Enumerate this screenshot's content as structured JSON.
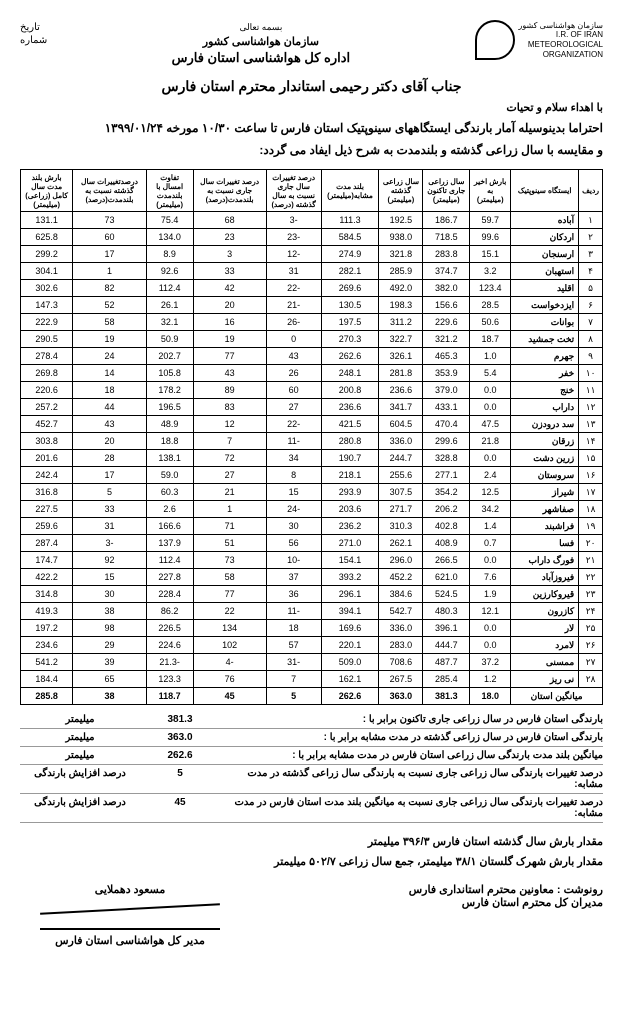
{
  "header": {
    "basmeh": "بسمه تعالی",
    "ministry": "سازمان هواشناسی کشور",
    "department": "اداره کل هواشناسی استان فارس",
    "logo_fa": "سازمان هواشناسی کشور",
    "logo_en1": "I.R. OF IRAN",
    "logo_en2": "METEOROLOGICAL",
    "logo_en3": "ORGANIZATION",
    "date_label": "تاریخ",
    "number_label": "شماره"
  },
  "letter": {
    "addressee": "جناب آقای دکتر رحیمی استاندار محترم استان فارس",
    "greeting": "با اهداء سلام و تحیات",
    "body1": "احتراما بدینوسیله آمار بارندگی ایستگاههای سینوپتیک استان فارس تا ساعت ۱۰/۳۰ مورخه ۱۳۹۹/۰۱/۲۴",
    "body2": "و مقایسه با سال زراعی گذشته و بلندمدت به شرح ذیل ایفاد می گردد:"
  },
  "table": {
    "headers": [
      "ردیف",
      "ایستگاه سینوپتیک",
      "بارش اخیر به (میلیمتر)",
      "سال زراعی جاری تاکنون (میلیمتر)",
      "سال زراعی گذشته (میلیمتر)",
      "بلند مدت مشابه(میلیمتر)",
      "درصد تغییرات سال جاری نسبت به سال گذشته (درصد)",
      "درصد تغییرات سال جاری نسبت به بلندمدت(درصد)",
      "تفاوت امسال با بلندمدت (میلیمتر)",
      "درصدتغییرات سال گذشته نسبت به بلندمدت(درصد)",
      "بارش بلند مدت سال کامل (زراعی) (میلیمتر)"
    ],
    "rows": [
      {
        "n": "۱",
        "station": "آباده",
        "c": [
          "59.7",
          "186.7",
          "192.5",
          "111.3",
          "-3",
          "68",
          "75.4",
          "73",
          "131.1"
        ]
      },
      {
        "n": "۲",
        "station": "اردکان",
        "c": [
          "99.6",
          "718.5",
          "938.0",
          "584.5",
          "-23",
          "23",
          "134.0",
          "60",
          "625.8"
        ]
      },
      {
        "n": "۳",
        "station": "ارسنجان",
        "c": [
          "15.1",
          "283.8",
          "321.8",
          "274.9",
          "-12",
          "3",
          "8.9",
          "17",
          "299.2"
        ]
      },
      {
        "n": "۴",
        "station": "استهبان",
        "c": [
          "3.2",
          "374.7",
          "285.9",
          "282.1",
          "31",
          "33",
          "92.6",
          "1",
          "304.1"
        ]
      },
      {
        "n": "۵",
        "station": "اقلید",
        "c": [
          "123.4",
          "382.0",
          "492.0",
          "269.6",
          "-22",
          "42",
          "112.4",
          "82",
          "302.6"
        ]
      },
      {
        "n": "۶",
        "station": "ایزدخواست",
        "c": [
          "28.5",
          "156.6",
          "198.3",
          "130.5",
          "-21",
          "20",
          "26.1",
          "52",
          "147.3"
        ]
      },
      {
        "n": "۷",
        "station": "بوانات",
        "c": [
          "50.6",
          "229.6",
          "311.2",
          "197.5",
          "-26",
          "16",
          "32.1",
          "58",
          "222.9"
        ]
      },
      {
        "n": "۸",
        "station": "تخت جمشید",
        "c": [
          "18.7",
          "321.2",
          "322.7",
          "270.3",
          "0",
          "19",
          "50.9",
          "19",
          "290.5"
        ]
      },
      {
        "n": "۹",
        "station": "جهرم",
        "c": [
          "1.0",
          "465.3",
          "326.1",
          "262.6",
          "43",
          "77",
          "202.7",
          "24",
          "278.4"
        ]
      },
      {
        "n": "۱۰",
        "station": "خفر",
        "c": [
          "5.4",
          "353.9",
          "281.8",
          "248.1",
          "26",
          "43",
          "105.8",
          "14",
          "269.8"
        ]
      },
      {
        "n": "۱۱",
        "station": "خنج",
        "c": [
          "0.0",
          "379.0",
          "236.6",
          "200.8",
          "60",
          "89",
          "178.2",
          "18",
          "220.6"
        ]
      },
      {
        "n": "۱۲",
        "station": "داراب",
        "c": [
          "0.0",
          "433.1",
          "341.7",
          "236.6",
          "27",
          "83",
          "196.5",
          "44",
          "257.2"
        ]
      },
      {
        "n": "۱۳",
        "station": "سد درودزن",
        "c": [
          "47.5",
          "470.4",
          "604.5",
          "421.5",
          "-22",
          "12",
          "48.9",
          "43",
          "452.7"
        ]
      },
      {
        "n": "۱۴",
        "station": "زرقان",
        "c": [
          "21.8",
          "299.6",
          "336.0",
          "280.8",
          "-11",
          "7",
          "18.8",
          "20",
          "303.8"
        ]
      },
      {
        "n": "۱۵",
        "station": "زرین دشت",
        "c": [
          "0.0",
          "328.8",
          "244.7",
          "190.7",
          "34",
          "72",
          "138.1",
          "28",
          "201.6"
        ]
      },
      {
        "n": "۱۶",
        "station": "سروستان",
        "c": [
          "2.4",
          "277.1",
          "255.6",
          "218.1",
          "8",
          "27",
          "59.0",
          "17",
          "242.4"
        ]
      },
      {
        "n": "۱۷",
        "station": "شیراز",
        "c": [
          "12.5",
          "354.2",
          "307.5",
          "293.9",
          "15",
          "21",
          "60.3",
          "5",
          "316.8"
        ]
      },
      {
        "n": "۱۸",
        "station": "صفاشهر",
        "c": [
          "34.2",
          "206.2",
          "271.7",
          "203.6",
          "-24",
          "1",
          "2.6",
          "33",
          "227.5"
        ]
      },
      {
        "n": "۱۹",
        "station": "فراشبند",
        "c": [
          "1.4",
          "402.8",
          "310.3",
          "236.2",
          "30",
          "71",
          "166.6",
          "31",
          "259.6"
        ]
      },
      {
        "n": "۲۰",
        "station": "فسا",
        "c": [
          "0.7",
          "408.9",
          "262.1",
          "271.0",
          "56",
          "51",
          "137.9",
          "-3",
          "287.4"
        ]
      },
      {
        "n": "۲۱",
        "station": "فورگ داراب",
        "c": [
          "0.0",
          "266.5",
          "296.0",
          "154.1",
          "-10",
          "73",
          "112.4",
          "92",
          "174.7"
        ]
      },
      {
        "n": "۲۲",
        "station": "فیروزآباد",
        "c": [
          "7.6",
          "621.0",
          "452.2",
          "393.2",
          "37",
          "58",
          "227.8",
          "15",
          "422.2"
        ]
      },
      {
        "n": "۲۳",
        "station": "قیروکارزین",
        "c": [
          "1.9",
          "524.5",
          "384.6",
          "296.1",
          "36",
          "77",
          "228.4",
          "30",
          "314.8"
        ]
      },
      {
        "n": "۲۴",
        "station": "کازرون",
        "c": [
          "12.1",
          "480.3",
          "542.7",
          "394.1",
          "-11",
          "22",
          "86.2",
          "38",
          "419.3"
        ]
      },
      {
        "n": "۲۵",
        "station": "لار",
        "c": [
          "0.0",
          "396.1",
          "336.0",
          "169.6",
          "18",
          "134",
          "226.5",
          "98",
          "197.2"
        ]
      },
      {
        "n": "۲۶",
        "station": "لامرد",
        "c": [
          "0.0",
          "444.7",
          "283.0",
          "220.1",
          "57",
          "102",
          "224.6",
          "29",
          "234.6"
        ]
      },
      {
        "n": "۲۷",
        "station": "ممسنی",
        "c": [
          "37.2",
          "487.7",
          "708.6",
          "509.0",
          "-31",
          "-4",
          "-21.3",
          "39",
          "541.2"
        ]
      },
      {
        "n": "۲۸",
        "station": "نی ریز",
        "c": [
          "1.2",
          "285.4",
          "267.5",
          "162.1",
          "7",
          "76",
          "123.3",
          "65",
          "184.4"
        ]
      }
    ],
    "avg": {
      "label": "میانگین استان",
      "c": [
        "18.0",
        "381.3",
        "363.0",
        "262.6",
        "5",
        "45",
        "118.7",
        "38",
        "285.8"
      ]
    }
  },
  "summary": [
    {
      "label": "بارندگی استان فارس در سال زراعی جاری تاکنون برابر با :",
      "value": "381.3",
      "unit": "میلیمتر"
    },
    {
      "label": "بارندگی استان فارس در سال زراعی گذشته در مدت مشابه برابر با :",
      "value": "363.0",
      "unit": "میلیمتر"
    },
    {
      "label": "میانگین بلند مدت بارندگی سال زراعی استان فارس در مدت مشابه برابر با :",
      "value": "262.6",
      "unit": "میلیمتر"
    },
    {
      "label": "درصد تغییرات بارندگی سال زراعی جاری نسبت به بارندگی سال زراعی گذشته در مدت مشابه:",
      "value": "5",
      "unit": "درصد افزایش بارندگی"
    },
    {
      "label": "درصد تغییرات بارندگی سال زراعی جاری نسبت به میانگین بلند مدت استان فارس در مدت مشابه:",
      "value": "45",
      "unit": "درصد افزایش بارندگی"
    }
  ],
  "footer": {
    "note1": "مقدار بارش سال گذشته استان فارس ۳۹۶/۳ میلیمتر",
    "note2": "مقدار بارش شهرک گلستان ۳۸/۱ میلیمتر، جمع سال زراعی ۵۰۲/۷ میلیمتر",
    "cc1": "رونوشت : معاونین محترم استانداری فارس",
    "cc2": "مدیران کل محترم استان فارس",
    "signer_name": "مسعود دهملایی",
    "signer_title": "مدیر کل هواشناسی استان فارس"
  }
}
